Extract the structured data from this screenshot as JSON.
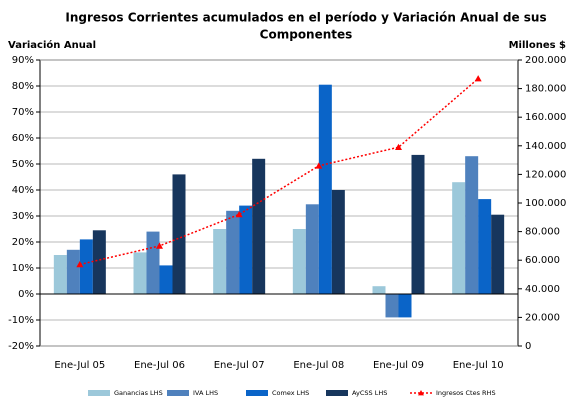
{
  "chart_data": {
    "type": "bar",
    "title": [
      "Ingresos Corrientes acumulados en el período y Variación Anual de sus",
      "Componentes"
    ],
    "y_label": "Variación Anual",
    "y2_label": "Millones $",
    "categories": [
      "Ene-Jul 05",
      "Ene-Jul 06",
      "Ene-Jul 07",
      "Ene-Jul 08",
      "Ene-Jul 09",
      "Ene-Jul 10"
    ],
    "series": [
      {
        "name": "Ganancias LHS",
        "color": "#9cc8da",
        "values": [
          15,
          16,
          25,
          25,
          3,
          43
        ]
      },
      {
        "name": "IVA LHS",
        "color": "#4f81bd",
        "values": [
          17,
          24,
          32,
          34.5,
          -9,
          53
        ]
      },
      {
        "name": "Comex LHS",
        "color": "#0a64c8",
        "values": [
          21,
          11,
          34,
          80.5,
          -9,
          36.5
        ]
      },
      {
        "name": "AyCSS LHS",
        "color": "#17365d",
        "values": [
          24.5,
          46,
          52,
          40,
          53.5,
          30.5
        ]
      },
      {
        "name": "Ingresos Ctes RHS",
        "color": "#ff0000",
        "type": "line",
        "axis": "y2",
        "values": [
          57000,
          70000,
          92000,
          126000,
          139000,
          187000
        ]
      }
    ],
    "ylim": [
      -20,
      90
    ],
    "yticks": [
      {
        "value": -20,
        "label": "-20%"
      },
      {
        "value": -10,
        "label": "-10%"
      },
      {
        "value": 0,
        "label": "0%"
      },
      {
        "value": 10,
        "label": "10%"
      },
      {
        "value": 20,
        "label": "20%"
      },
      {
        "value": 30,
        "label": "30%"
      },
      {
        "value": 40,
        "label": "40%"
      },
      {
        "value": 50,
        "label": "50%"
      },
      {
        "value": 60,
        "label": "60%"
      },
      {
        "value": 70,
        "label": "70%"
      },
      {
        "value": 80,
        "label": "80%"
      },
      {
        "value": 90,
        "label": "90%"
      }
    ],
    "y2lim": [
      0,
      200000
    ],
    "y2ticks": [
      0,
      {
        "value": 20000,
        "label": "20.000"
      },
      {
        "value": 40000,
        "label": "40.000"
      },
      {
        "value": 60000,
        "label": "60.000"
      },
      {
        "value": 80000,
        "label": "80.000"
      },
      {
        "value": 100000,
        "label": "100.000"
      },
      {
        "value": 120000,
        "label": "120.000"
      },
      {
        "value": 140000,
        "label": "140.000"
      },
      {
        "value": 160000,
        "label": "160.000"
      },
      {
        "value": 180000,
        "label": "180.000"
      },
      {
        "value": 200000,
        "label": "200.000"
      }
    ],
    "grid": true,
    "legend": "bottom"
  }
}
